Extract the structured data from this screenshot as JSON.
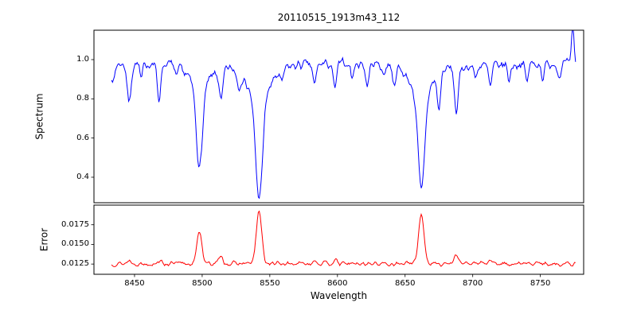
{
  "figure": {
    "background": "#ffffff"
  },
  "chart_data": {
    "type": "line",
    "title": "20110515_1913m43_112",
    "xlabel": "Wavelength",
    "grid": false,
    "legend": false,
    "xlim": [
      8420,
      8782
    ],
    "x_range": [
      8433,
      8776
    ],
    "x_ticks": [
      8450,
      8500,
      8550,
      8600,
      8650,
      8700,
      8750
    ],
    "x_tick_labels": [
      "8450",
      "8500",
      "8550",
      "8600",
      "8650",
      "8700",
      "8750"
    ],
    "subplots": [
      {
        "name": "spectrum",
        "ylabel": "Spectrum",
        "color": "#0000ff",
        "ylim": [
          0.27,
          1.15
        ],
        "y_ticks": [
          0.4,
          0.6,
          0.8,
          1.0
        ],
        "y_tick_labels": [
          "0.4",
          "0.6",
          "0.8",
          "1.0"
        ],
        "continuum": 0.972,
        "noise_amplitude": 0.022,
        "absorption_lines": [
          {
            "center": 8498,
            "depth": 0.52,
            "width": 2.2
          },
          {
            "center": 8542,
            "depth": 0.67,
            "width": 2.6
          },
          {
            "center": 8662,
            "depth": 0.64,
            "width": 2.4
          },
          {
            "center": 8434,
            "depth": 0.1,
            "width": 1.2
          },
          {
            "center": 8446,
            "depth": 0.2,
            "width": 1.4
          },
          {
            "center": 8455,
            "depth": 0.09,
            "width": 1.0
          },
          {
            "center": 8468,
            "depth": 0.18,
            "width": 1.3
          },
          {
            "center": 8481,
            "depth": 0.07,
            "width": 1.0
          },
          {
            "center": 8514,
            "depth": 0.17,
            "width": 1.4
          },
          {
            "center": 8527,
            "depth": 0.07,
            "width": 1.0
          },
          {
            "center": 8559,
            "depth": 0.07,
            "width": 1.0
          },
          {
            "center": 8583,
            "depth": 0.11,
            "width": 1.2
          },
          {
            "center": 8598,
            "depth": 0.13,
            "width": 1.3
          },
          {
            "center": 8611,
            "depth": 0.08,
            "width": 1.0
          },
          {
            "center": 8622,
            "depth": 0.11,
            "width": 1.2
          },
          {
            "center": 8634,
            "depth": 0.06,
            "width": 1.0
          },
          {
            "center": 8642,
            "depth": 0.09,
            "width": 1.1
          },
          {
            "center": 8675,
            "depth": 0.18,
            "width": 1.2
          },
          {
            "center": 8688,
            "depth": 0.23,
            "width": 1.5
          },
          {
            "center": 8702,
            "depth": 0.06,
            "width": 1.0
          },
          {
            "center": 8713,
            "depth": 0.11,
            "width": 1.2
          },
          {
            "center": 8727,
            "depth": 0.08,
            "width": 1.0
          },
          {
            "center": 8740,
            "depth": 0.09,
            "width": 1.1
          },
          {
            "center": 8752,
            "depth": 0.08,
            "width": 1.0
          },
          {
            "center": 8764,
            "depth": 0.07,
            "width": 1.0
          }
        ],
        "emission_spike": {
          "center": 8774,
          "height": 0.17,
          "width": 0.9
        }
      },
      {
        "name": "error",
        "ylabel": "Error",
        "color": "#ff0000",
        "ylim": [
          0.0112,
          0.02
        ],
        "y_ticks": [
          0.0125,
          0.015,
          0.0175
        ],
        "y_tick_labels": [
          "0.0125",
          "0.0150",
          "0.0175"
        ],
        "baseline": 0.01255,
        "noise_amplitude": 0.00025,
        "peaks": [
          {
            "center": 8498,
            "height": 0.0042,
            "width": 1.8
          },
          {
            "center": 8542,
            "height": 0.0066,
            "width": 2.0
          },
          {
            "center": 8662,
            "height": 0.0064,
            "width": 2.0
          },
          {
            "center": 8446,
            "height": 0.0004,
            "width": 1.4
          },
          {
            "center": 8468,
            "height": 0.0004,
            "width": 1.4
          },
          {
            "center": 8514,
            "height": 0.0009,
            "width": 1.5
          },
          {
            "center": 8583,
            "height": 0.0005,
            "width": 1.4
          },
          {
            "center": 8598,
            "height": 0.0004,
            "width": 1.4
          },
          {
            "center": 8688,
            "height": 0.0013,
            "width": 1.5
          },
          {
            "center": 8713,
            "height": 0.0004,
            "width": 1.4
          }
        ]
      }
    ]
  }
}
